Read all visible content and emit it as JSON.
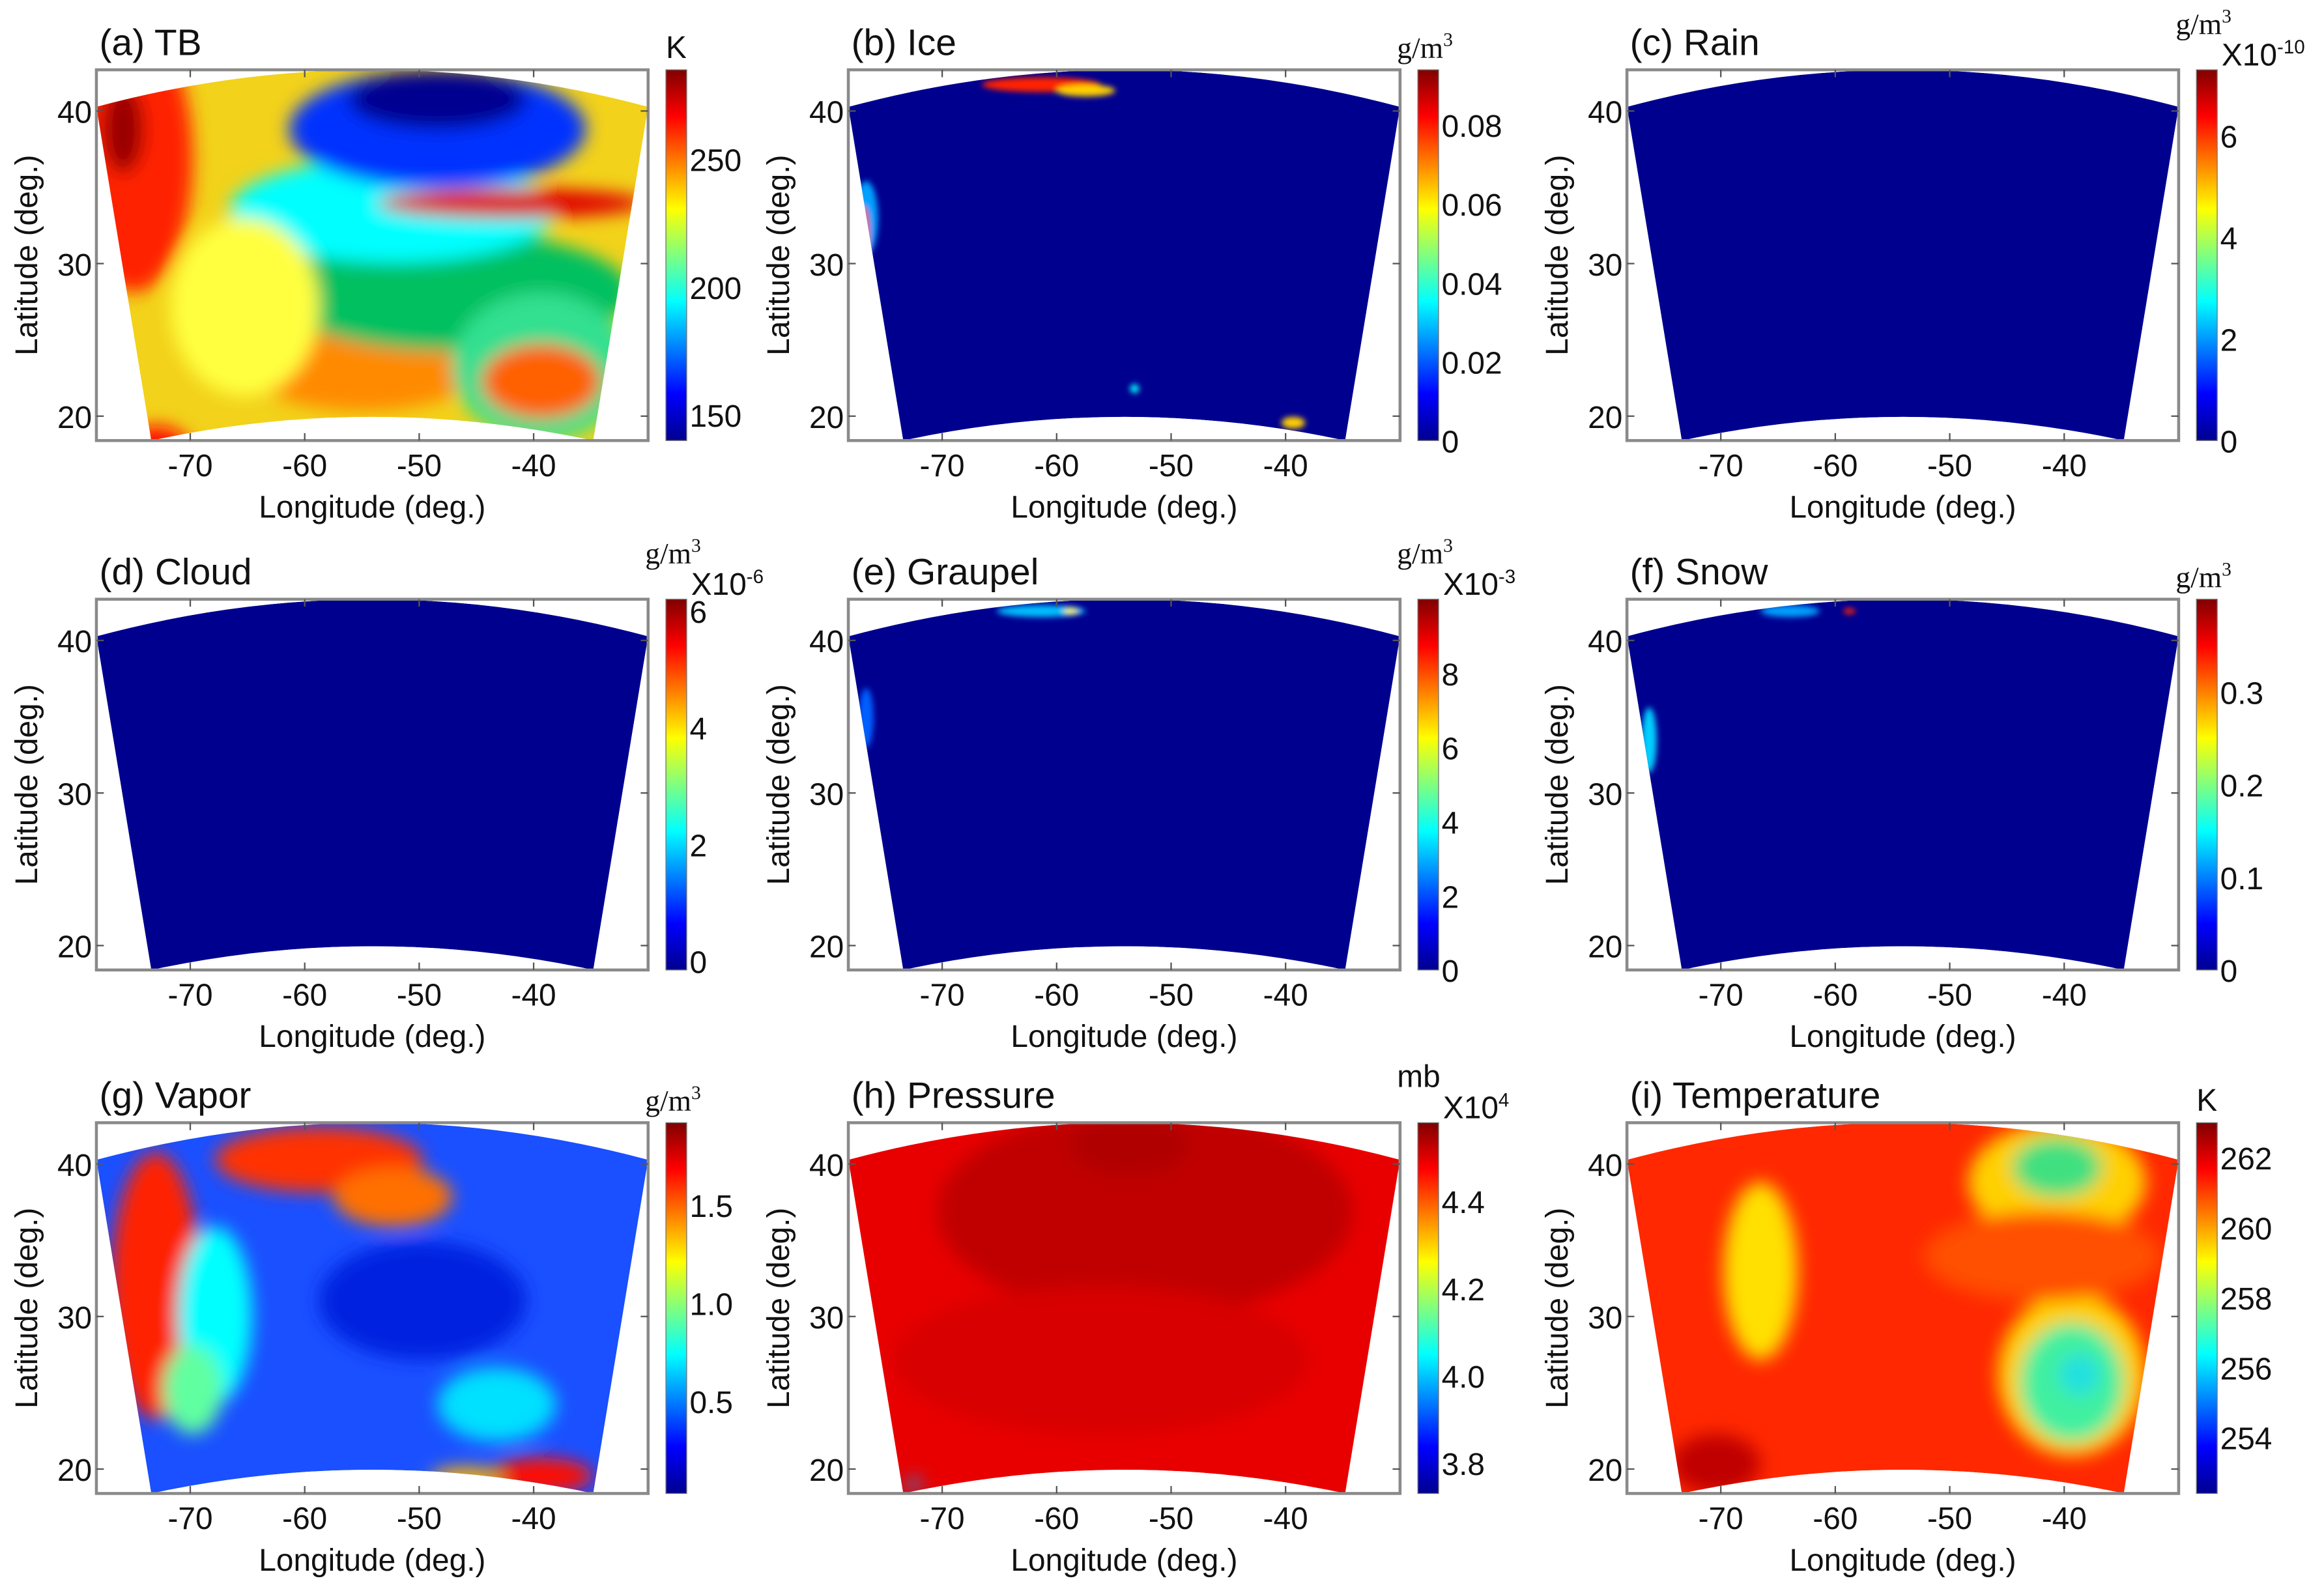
{
  "figure": {
    "colormap": "jet",
    "jet_colors": [
      "#00008f",
      "#0000ff",
      "#00ffff",
      "#ffff00",
      "#ff0000",
      "#800000"
    ],
    "frame_color": "#8a8a8a"
  },
  "chart_data": [
    {
      "type": "heatmap",
      "title": "(a) TB",
      "xlabel": "Longitude (deg.)",
      "ylabel": "Latitude (deg.)",
      "xlim": [
        -78.2,
        -30
      ],
      "ylim": [
        18.4,
        42.7
      ],
      "xticks": [
        "-70",
        "-60",
        "-50",
        "-40"
      ],
      "yticks": [
        "20",
        "30",
        "40"
      ],
      "colorbar": {
        "unit_base": "K",
        "unit_exp": "",
        "mult_base": "",
        "mult_exp": "",
        "clim": [
          140,
          285
        ],
        "ticks": [
          "150",
          "200",
          "250"
        ]
      }
    },
    {
      "type": "heatmap",
      "title": "(b) Ice",
      "xlabel": "Longitude (deg.)",
      "ylabel": "Latitude (deg.)",
      "xlim": [
        -78.2,
        -30
      ],
      "ylim": [
        18.4,
        42.7
      ],
      "xticks": [
        "-70",
        "-60",
        "-50",
        "-40"
      ],
      "yticks": [
        "20",
        "30",
        "40"
      ],
      "colorbar": {
        "unit_base": "g/m",
        "unit_exp": "3",
        "mult_base": "",
        "mult_exp": "",
        "clim": [
          0,
          0.094
        ],
        "ticks": [
          "0",
          "0.02",
          "0.04",
          "0.06",
          "0.08"
        ]
      }
    },
    {
      "type": "heatmap",
      "title": "(c) Rain",
      "xlabel": "Longitude (deg.)",
      "ylabel": "Latitude (deg.)",
      "xlim": [
        -78.2,
        -30
      ],
      "ylim": [
        18.4,
        42.7
      ],
      "xticks": [
        "-70",
        "-60",
        "-50",
        "-40"
      ],
      "yticks": [
        "20",
        "30",
        "40"
      ],
      "colorbar": {
        "unit_base": "g/m",
        "unit_exp": "3",
        "mult_base": "X10",
        "mult_exp": "-10",
        "clim": [
          0,
          7.3
        ],
        "ticks": [
          "0",
          "2",
          "4",
          "6"
        ]
      }
    },
    {
      "type": "heatmap",
      "title": "(d) Cloud",
      "xlabel": "Longitude (deg.)",
      "ylabel": "Latitude (deg.)",
      "xlim": [
        -78.2,
        -30
      ],
      "ylim": [
        18.4,
        42.7
      ],
      "xticks": [
        "-70",
        "-60",
        "-50",
        "-40"
      ],
      "yticks": [
        "20",
        "30",
        "40"
      ],
      "colorbar": {
        "unit_base": "g/m",
        "unit_exp": "3",
        "mult_base": "X10",
        "mult_exp": "-6",
        "clim": [
          -0.15,
          6.2
        ],
        "ticks": [
          "0",
          "2",
          "4",
          "6"
        ]
      }
    },
    {
      "type": "heatmap",
      "title": "(e) Graupel",
      "xlabel": "Longitude (deg.)",
      "ylabel": "Latitude (deg.)",
      "xlim": [
        -78.2,
        -30
      ],
      "ylim": [
        18.4,
        42.7
      ],
      "xticks": [
        "-70",
        "-60",
        "-50",
        "-40"
      ],
      "yticks": [
        "20",
        "30",
        "40"
      ],
      "colorbar": {
        "unit_base": "g/m",
        "unit_exp": "3",
        "mult_base": "X10",
        "mult_exp": "-3",
        "clim": [
          0,
          10
        ],
        "ticks": [
          "0",
          "2",
          "4",
          "6",
          "8"
        ]
      }
    },
    {
      "type": "heatmap",
      "title": "(f) Snow",
      "xlabel": "Longitude (deg.)",
      "ylabel": "Latitude (deg.)",
      "xlim": [
        -78.2,
        -30
      ],
      "ylim": [
        18.4,
        42.7
      ],
      "xticks": [
        "-70",
        "-60",
        "-50",
        "-40"
      ],
      "yticks": [
        "20",
        "30",
        "40"
      ],
      "colorbar": {
        "unit_base": "g/m",
        "unit_exp": "3",
        "mult_base": "",
        "mult_exp": "",
        "clim": [
          0,
          0.4
        ],
        "ticks": [
          "0",
          "0.1",
          "0.2",
          "0.3"
        ]
      }
    },
    {
      "type": "heatmap",
      "title": "(g) Vapor",
      "xlabel": "Longitude (deg.)",
      "ylabel": "Latitude (deg.)",
      "xlim": [
        -78.2,
        -30
      ],
      "ylim": [
        18.4,
        42.7
      ],
      "xticks": [
        "-70",
        "-60",
        "-50",
        "-40"
      ],
      "yticks": [
        "20",
        "30",
        "40"
      ],
      "colorbar": {
        "unit_base": "g/m",
        "unit_exp": "3",
        "mult_base": "",
        "mult_exp": "",
        "clim": [
          0.03,
          1.92
        ],
        "ticks": [
          "0.5",
          "1.0",
          "1.5"
        ]
      }
    },
    {
      "type": "heatmap",
      "title": "(h) Pressure",
      "xlabel": "Longitude (deg.)",
      "ylabel": "Latitude (deg.)",
      "xlim": [
        -78.2,
        -30
      ],
      "ylim": [
        18.4,
        42.7
      ],
      "xticks": [
        "-70",
        "-60",
        "-50",
        "-40"
      ],
      "yticks": [
        "20",
        "30",
        "40"
      ],
      "colorbar": {
        "unit_base": "mb",
        "unit_exp": "",
        "mult_base": "X10",
        "mult_exp": "4",
        "clim": [
          3.73,
          4.58
        ],
        "ticks": [
          "3.8",
          "4.0",
          "4.2",
          "4.4"
        ]
      }
    },
    {
      "type": "heatmap",
      "title": "(i) Temperature",
      "xlabel": "Longitude (deg.)",
      "ylabel": "Latitude (deg.)",
      "xlim": [
        -78.2,
        -30
      ],
      "ylim": [
        18.4,
        42.7
      ],
      "xticks": [
        "-70",
        "-60",
        "-50",
        "-40"
      ],
      "yticks": [
        "20",
        "30",
        "40"
      ],
      "colorbar": {
        "unit_base": "K",
        "unit_exp": "",
        "mult_base": "",
        "mult_exp": "",
        "clim": [
          252.4,
          263
        ],
        "ticks": [
          "254",
          "256",
          "258",
          "260",
          "262"
        ]
      }
    }
  ]
}
